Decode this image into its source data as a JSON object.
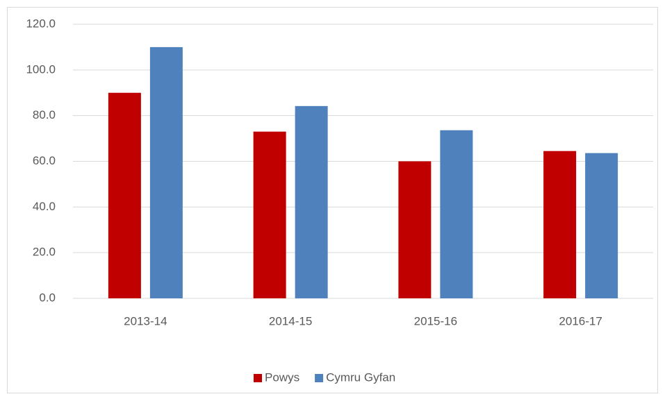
{
  "chart_data": {
    "type": "bar",
    "categories": [
      "2013-14",
      "2014-15",
      "2015-16",
      "2016-17"
    ],
    "series": [
      {
        "name": "Powys",
        "color": "#c00000",
        "values": [
          90.0,
          73.0,
          60.0,
          64.5
        ]
      },
      {
        "name": "Cymru Gyfan",
        "color": "#4f81bd",
        "values": [
          110.0,
          84.2,
          73.6,
          63.6
        ]
      }
    ],
    "ylim": [
      0,
      120
    ],
    "yticks": [
      {
        "value": 0,
        "label": "0.0"
      },
      {
        "value": 20,
        "label": "20.0"
      },
      {
        "value": 40,
        "label": "40.0"
      },
      {
        "value": 60,
        "label": "60.0"
      },
      {
        "value": 80,
        "label": "80.0"
      },
      {
        "value": 100,
        "label": "100.0"
      },
      {
        "value": 120,
        "label": "120.0"
      }
    ],
    "grid": true,
    "legend": "bottom"
  }
}
